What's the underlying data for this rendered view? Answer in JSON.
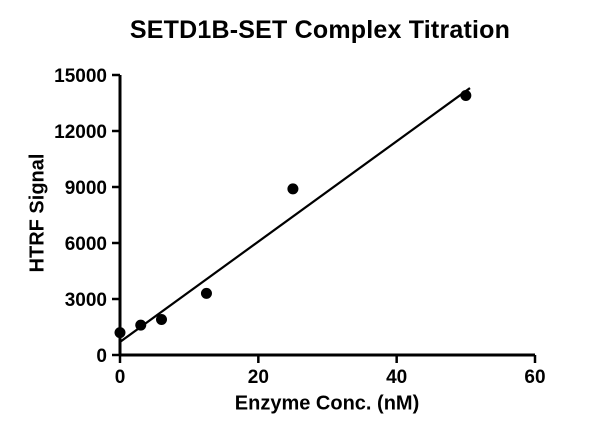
{
  "page": {
    "background": "#ffffff"
  },
  "chart_data": {
    "type": "scatter",
    "title": "SETD1B-SET Complex Titration",
    "xlabel": "Enzyme Conc. (nM)",
    "ylabel": "HTRF Signal",
    "xlim": [
      0,
      60
    ],
    "ylim": [
      0,
      15000
    ],
    "xticks": [
      0,
      20,
      40,
      60
    ],
    "yticks": [
      0,
      3000,
      6000,
      9000,
      12000,
      15000
    ],
    "grid": false,
    "legend": "none",
    "marker_color": "#000000",
    "line_color": "#000000",
    "series": [
      {
        "name": "Linear fit",
        "type": "line",
        "color": "#000000",
        "points": [
          {
            "x": 0,
            "y": 700
          },
          {
            "x": 50.6,
            "y": 14300
          }
        ]
      },
      {
        "name": "HTRF Signal",
        "type": "scatter",
        "marker": "filled-circle",
        "color": "#000000",
        "points": [
          {
            "x": 0,
            "y": 1200
          },
          {
            "x": 3,
            "y": 1600
          },
          {
            "x": 6,
            "y": 1900
          },
          {
            "x": 12.5,
            "y": 3300
          },
          {
            "x": 25,
            "y": 8900
          },
          {
            "x": 50,
            "y": 13900
          }
        ]
      }
    ]
  }
}
